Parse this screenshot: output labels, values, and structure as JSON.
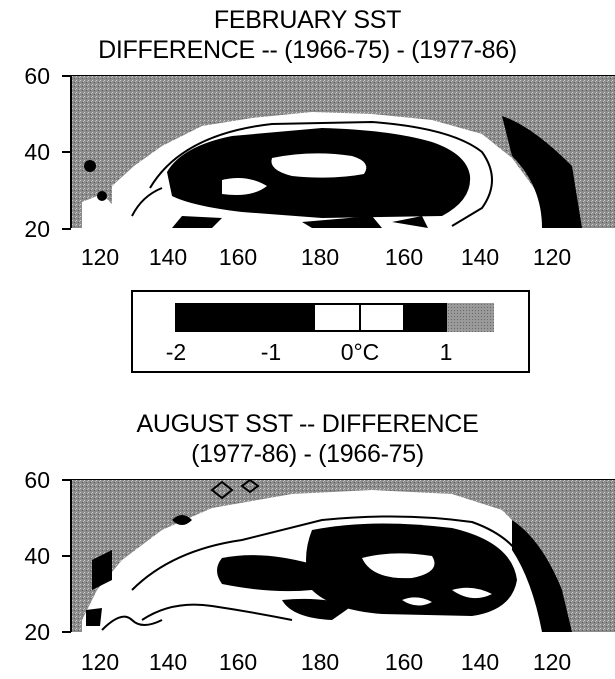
{
  "maps": [
    {
      "title_line1": "FEBRUARY SST",
      "title_line2": "DIFFERENCE -- (1966-75) - (1977-86)",
      "y_labels": [
        "60",
        "40",
        "20"
      ],
      "x_labels": [
        "120",
        "140",
        "160",
        "180",
        "160",
        "140",
        "120"
      ]
    },
    {
      "title_line1": "AUGUST SST -- DIFFERENCE",
      "title_line2": "(1977-86) - (1966-75)",
      "y_labels": [
        "60",
        "40",
        "20"
      ],
      "x_labels": [
        "120",
        "140",
        "160",
        "180",
        "160",
        "140",
        "120"
      ]
    }
  ],
  "legend": {
    "labels": [
      "-2",
      "-1",
      "0°C",
      "1"
    ],
    "colors": [
      "#000000",
      "#000000",
      "#ffffff",
      "#ffffff",
      "#000000",
      "#9a9a9a"
    ]
  },
  "colors": {
    "land": "#9a9a9a",
    "dark": "#000000",
    "light": "#ffffff"
  }
}
